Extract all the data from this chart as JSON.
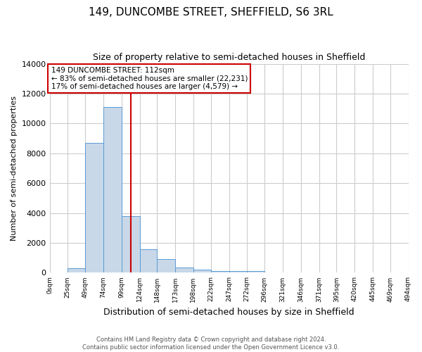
{
  "title": "149, DUNCOMBE STREET, SHEFFIELD, S6 3RL",
  "subtitle": "Size of property relative to semi-detached houses in Sheffield",
  "xlabel": "Distribution of semi-detached houses by size in Sheffield",
  "ylabel": "Number of semi-detached properties",
  "bin_labels": [
    "0sqm",
    "25sqm",
    "49sqm",
    "74sqm",
    "99sqm",
    "124sqm",
    "148sqm",
    "173sqm",
    "198sqm",
    "222sqm",
    "247sqm",
    "272sqm",
    "296sqm",
    "321sqm",
    "346sqm",
    "371sqm",
    "395sqm",
    "420sqm",
    "445sqm",
    "469sqm",
    "494sqm"
  ],
  "bin_edges": [
    0,
    25,
    49,
    74,
    99,
    124,
    148,
    173,
    198,
    222,
    247,
    272,
    296,
    321,
    346,
    371,
    395,
    420,
    445,
    469,
    494
  ],
  "bar_values": [
    0,
    300,
    8700,
    11100,
    3800,
    1600,
    900,
    350,
    200,
    100,
    100,
    100,
    0,
    0,
    0,
    0,
    0,
    0,
    0,
    0
  ],
  "bar_color": "#c8d8e8",
  "bar_edge_color": "#5b9bd5",
  "property_size": 112,
  "vline_color": "#cc0000",
  "annotation_text": "149 DUNCOMBE STREET: 112sqm\n← 83% of semi-detached houses are smaller (22,231)\n17% of semi-detached houses are larger (4,579) →",
  "annotation_box_color": "#cc0000",
  "ylim": [
    0,
    14000
  ],
  "xlim": [
    0,
    494
  ],
  "footnote": "Contains HM Land Registry data © Crown copyright and database right 2024.\nContains public sector information licensed under the Open Government Licence v3.0.",
  "bg_color": "#ffffff",
  "grid_color": "#cccccc",
  "title_fontsize": 11,
  "subtitle_fontsize": 9,
  "yticks": [
    0,
    2000,
    4000,
    6000,
    8000,
    10000,
    12000,
    14000
  ]
}
